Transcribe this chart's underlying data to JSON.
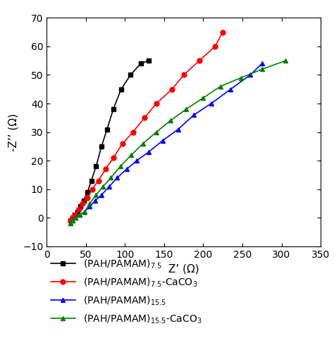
{
  "title": "",
  "xlabel": "Z’ (Ω)",
  "ylabel": "-Z’’ (Ω)",
  "xlim": [
    0,
    350
  ],
  "ylim": [
    -10,
    70
  ],
  "xticks": [
    0,
    50,
    100,
    150,
    200,
    250,
    300,
    350
  ],
  "yticks": [
    -10,
    0,
    10,
    20,
    30,
    40,
    50,
    60,
    70
  ],
  "series": [
    {
      "label": "(PAH/PAMAM)$_{7.5}$",
      "color": "black",
      "marker": "s",
      "x": [
        30,
        33,
        36,
        39,
        43,
        47,
        52,
        57,
        63,
        70,
        77,
        85,
        95,
        107,
        120,
        130
      ],
      "y": [
        -1,
        0,
        1,
        2,
        4,
        6,
        9,
        13,
        18,
        25,
        31,
        38,
        45,
        50,
        54,
        55
      ]
    },
    {
      "label": "(PAH/PAMAM)$_{7.5}$-CaCO$_3$",
      "color": "red",
      "marker": "o",
      "x": [
        30,
        33,
        37,
        41,
        46,
        52,
        58,
        66,
        75,
        85,
        97,
        110,
        125,
        140,
        160,
        175,
        195,
        215,
        225
      ],
      "y": [
        -1,
        0,
        1,
        3,
        5,
        7,
        10,
        13,
        17,
        21,
        26,
        30,
        35,
        40,
        45,
        50,
        55,
        60,
        65
      ]
    },
    {
      "label": "(PAH/PAMAM)$_{15.5}$",
      "color": "blue",
      "marker": "^",
      "x": [
        30,
        33,
        37,
        42,
        48,
        55,
        62,
        70,
        80,
        90,
        102,
        115,
        130,
        148,
        168,
        188,
        210,
        235,
        260,
        275
      ],
      "y": [
        -2,
        -1,
        0,
        1,
        2,
        4,
        6,
        8,
        11,
        14,
        17,
        20,
        23,
        27,
        31,
        36,
        40,
        45,
        50,
        54
      ]
    },
    {
      "label": "(PAH/PAMAM)$_{15.5}$-CaCO$_3$",
      "color": "green",
      "marker": "^",
      "x": [
        30,
        33,
        37,
        42,
        48,
        55,
        63,
        72,
        82,
        94,
        108,
        123,
        140,
        158,
        178,
        200,
        222,
        248,
        275,
        305
      ],
      "y": [
        -2,
        -1,
        0,
        1,
        2,
        5,
        8,
        11,
        14,
        18,
        22,
        26,
        30,
        34,
        38,
        42,
        46,
        49,
        52,
        55
      ]
    }
  ],
  "figure_facecolor": "white",
  "axes_facecolor": "white",
  "markersize": 5,
  "linewidth": 1.2,
  "tick_labelsize": 10,
  "xlabel_fontsize": 11,
  "ylabel_fontsize": 11,
  "legend_fontsize": 10
}
